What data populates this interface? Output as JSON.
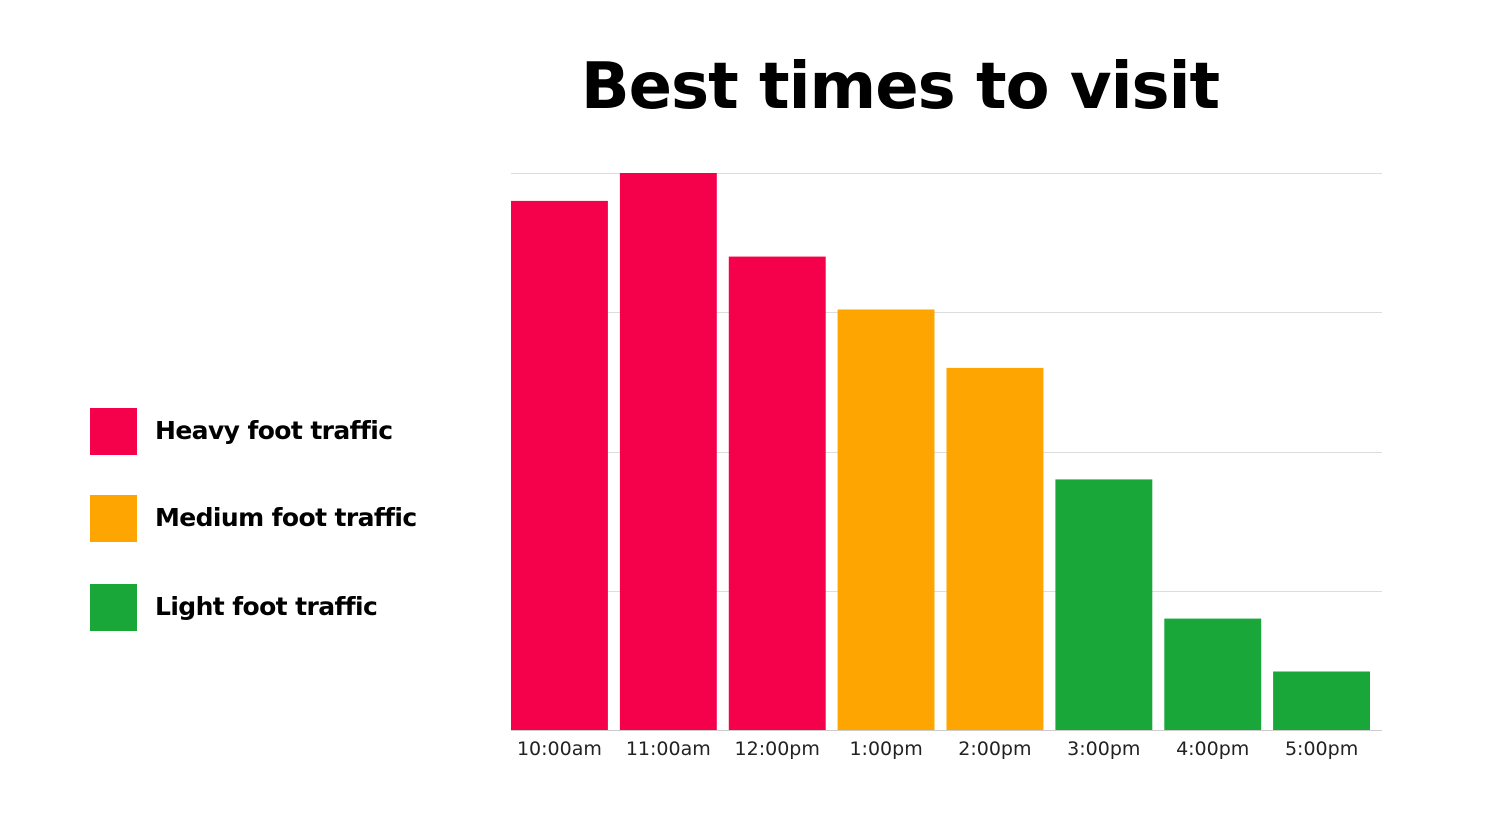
{
  "chart_data": {
    "type": "bar",
    "title": "Best times to visit",
    "xlabel": "",
    "ylabel": "",
    "categories": [
      "10:00am",
      "11:00am",
      "12:00pm",
      "1:00pm",
      "2:00pm",
      "3:00pm",
      "4:00pm",
      "5:00pm"
    ],
    "values": [
      95,
      100,
      85,
      75.5,
      65,
      45,
      20,
      10.5
    ],
    "bar_levels": [
      "Heavy foot traffic",
      "Heavy foot traffic",
      "Heavy foot traffic",
      "Medium foot traffic",
      "Medium foot traffic",
      "Light foot traffic",
      "Light foot traffic",
      "Light foot traffic"
    ],
    "ylim": [
      0,
      100
    ],
    "y_gridlines": [
      0,
      25,
      50,
      75,
      100
    ],
    "y_tick_labels_shown": false,
    "grid": true,
    "legend_position": "left",
    "legend": [
      {
        "label": "Heavy foot traffic",
        "color": "#f5004a"
      },
      {
        "label": "Medium foot traffic",
        "color": "#ffa502"
      },
      {
        "label": "Light foot traffic",
        "color": "#1aa73a"
      }
    ]
  },
  "colors": {
    "heavy": "#f5004a",
    "medium": "#ffa502",
    "light": "#1aa73a",
    "gridline": "#dddddd",
    "axis": "#cccccc"
  }
}
